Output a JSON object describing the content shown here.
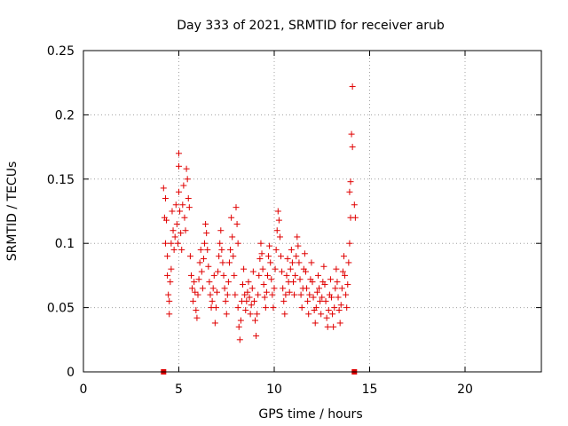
{
  "chart_data": {
    "type": "scatter",
    "title": "Day 333 of 2021, SRMTID for receiver arub",
    "xlabel": "GPS time / hours",
    "ylabel": "SRMTID / TECUs",
    "xlim": [
      0,
      24
    ],
    "ylim": [
      0,
      0.25
    ],
    "xticks": [
      0,
      5,
      10,
      15,
      20
    ],
    "yticks": [
      0,
      0.05,
      0.1,
      0.15,
      0.2,
      0.25
    ],
    "ytick_labels": [
      "0",
      "0.05",
      "0.1",
      "0.15",
      "0.2",
      "0.25"
    ],
    "xtick_labels": [
      "0",
      "5",
      "10",
      "15",
      "20"
    ],
    "grid": true,
    "marker": "+",
    "color": "#e00000",
    "zero_markers_x": [
      4.2,
      14.2
    ],
    "points": [
      [
        4.2,
        0.143
      ],
      [
        4.25,
        0.12
      ],
      [
        4.3,
        0.1
      ],
      [
        4.3,
        0.135
      ],
      [
        4.35,
        0.118
      ],
      [
        4.4,
        0.09
      ],
      [
        4.4,
        0.075
      ],
      [
        4.45,
        0.06
      ],
      [
        4.5,
        0.045
      ],
      [
        4.5,
        0.055
      ],
      [
        4.55,
        0.07
      ],
      [
        4.6,
        0.08
      ],
      [
        4.6,
        0.1
      ],
      [
        4.65,
        0.125
      ],
      [
        4.7,
        0.11
      ],
      [
        4.75,
        0.095
      ],
      [
        4.8,
        0.105
      ],
      [
        4.85,
        0.13
      ],
      [
        4.9,
        0.115
      ],
      [
        4.95,
        0.1
      ],
      [
        5.0,
        0.14
      ],
      [
        5.0,
        0.16
      ],
      [
        5.0,
        0.17
      ],
      [
        5.05,
        0.125
      ],
      [
        5.1,
        0.108
      ],
      [
        5.15,
        0.095
      ],
      [
        5.2,
        0.13
      ],
      [
        5.25,
        0.145
      ],
      [
        5.3,
        0.12
      ],
      [
        5.35,
        0.11
      ],
      [
        5.4,
        0.158
      ],
      [
        5.45,
        0.15
      ],
      [
        5.5,
        0.135
      ],
      [
        5.55,
        0.128
      ],
      [
        5.6,
        0.09
      ],
      [
        5.65,
        0.075
      ],
      [
        5.7,
        0.065
      ],
      [
        5.75,
        0.055
      ],
      [
        5.8,
        0.07
      ],
      [
        5.85,
        0.062
      ],
      [
        5.9,
        0.048
      ],
      [
        5.95,
        0.042
      ],
      [
        6.0,
        0.06
      ],
      [
        6.05,
        0.072
      ],
      [
        6.1,
        0.085
      ],
      [
        6.15,
        0.095
      ],
      [
        6.2,
        0.078
      ],
      [
        6.25,
        0.065
      ],
      [
        6.3,
        0.088
      ],
      [
        6.35,
        0.1
      ],
      [
        6.4,
        0.115
      ],
      [
        6.45,
        0.108
      ],
      [
        6.5,
        0.095
      ],
      [
        6.55,
        0.082
      ],
      [
        6.6,
        0.07
      ],
      [
        6.65,
        0.06
      ],
      [
        6.7,
        0.05
      ],
      [
        6.75,
        0.055
      ],
      [
        6.8,
        0.065
      ],
      [
        6.85,
        0.075
      ],
      [
        6.9,
        0.038
      ],
      [
        6.95,
        0.05
      ],
      [
        7.0,
        0.062
      ],
      [
        7.05,
        0.078
      ],
      [
        7.1,
        0.09
      ],
      [
        7.15,
        0.1
      ],
      [
        7.2,
        0.11
      ],
      [
        7.25,
        0.095
      ],
      [
        7.3,
        0.085
      ],
      [
        7.35,
        0.075
      ],
      [
        7.4,
        0.065
      ],
      [
        7.45,
        0.055
      ],
      [
        7.5,
        0.045
      ],
      [
        7.55,
        0.06
      ],
      [
        7.6,
        0.07
      ],
      [
        7.65,
        0.085
      ],
      [
        7.7,
        0.095
      ],
      [
        7.75,
        0.12
      ],
      [
        7.8,
        0.105
      ],
      [
        7.85,
        0.09
      ],
      [
        7.9,
        0.075
      ],
      [
        7.95,
        0.06
      ],
      [
        8.0,
        0.128
      ],
      [
        8.05,
        0.115
      ],
      [
        8.1,
        0.1
      ],
      [
        8.1,
        0.05
      ],
      [
        8.15,
        0.035
      ],
      [
        8.2,
        0.025
      ],
      [
        8.25,
        0.04
      ],
      [
        8.3,
        0.055
      ],
      [
        8.35,
        0.068
      ],
      [
        8.4,
        0.08
      ],
      [
        8.45,
        0.06
      ],
      [
        8.5,
        0.048
      ],
      [
        8.55,
        0.055
      ],
      [
        8.6,
        0.062
      ],
      [
        8.65,
        0.07
      ],
      [
        8.7,
        0.058
      ],
      [
        8.75,
        0.045
      ],
      [
        8.8,
        0.052
      ],
      [
        8.85,
        0.065
      ],
      [
        8.9,
        0.078
      ],
      [
        8.95,
        0.055
      ],
      [
        9.0,
        0.04
      ],
      [
        9.05,
        0.028
      ],
      [
        9.1,
        0.045
      ],
      [
        9.15,
        0.06
      ],
      [
        9.2,
        0.075
      ],
      [
        9.25,
        0.088
      ],
      [
        9.3,
        0.1
      ],
      [
        9.35,
        0.092
      ],
      [
        9.4,
        0.08
      ],
      [
        9.45,
        0.068
      ],
      [
        9.5,
        0.058
      ],
      [
        9.55,
        0.05
      ],
      [
        9.6,
        0.062
      ],
      [
        9.65,
        0.075
      ],
      [
        9.7,
        0.09
      ],
      [
        9.75,
        0.098
      ],
      [
        9.8,
        0.085
      ],
      [
        9.85,
        0.072
      ],
      [
        9.9,
        0.06
      ],
      [
        9.95,
        0.05
      ],
      [
        10.0,
        0.065
      ],
      [
        10.05,
        0.08
      ],
      [
        10.1,
        0.095
      ],
      [
        10.15,
        0.11
      ],
      [
        10.2,
        0.125
      ],
      [
        10.25,
        0.118
      ],
      [
        10.3,
        0.105
      ],
      [
        10.35,
        0.09
      ],
      [
        10.4,
        0.078
      ],
      [
        10.45,
        0.065
      ],
      [
        10.5,
        0.055
      ],
      [
        10.55,
        0.045
      ],
      [
        10.6,
        0.06
      ],
      [
        10.65,
        0.075
      ],
      [
        10.7,
        0.088
      ],
      [
        10.75,
        0.07
      ],
      [
        10.8,
        0.062
      ],
      [
        10.85,
        0.08
      ],
      [
        10.9,
        0.095
      ],
      [
        10.95,
        0.085
      ],
      [
        11.0,
        0.07
      ],
      [
        11.05,
        0.06
      ],
      [
        11.1,
        0.075
      ],
      [
        11.15,
        0.09
      ],
      [
        11.2,
        0.105
      ],
      [
        11.25,
        0.098
      ],
      [
        11.3,
        0.085
      ],
      [
        11.35,
        0.072
      ],
      [
        11.4,
        0.06
      ],
      [
        11.45,
        0.05
      ],
      [
        11.5,
        0.065
      ],
      [
        11.55,
        0.08
      ],
      [
        11.6,
        0.092
      ],
      [
        11.65,
        0.078
      ],
      [
        11.7,
        0.065
      ],
      [
        11.75,
        0.055
      ],
      [
        11.8,
        0.045
      ],
      [
        11.85,
        0.06
      ],
      [
        11.9,
        0.072
      ],
      [
        11.95,
        0.085
      ],
      [
        12.0,
        0.07
      ],
      [
        12.05,
        0.058
      ],
      [
        12.1,
        0.048
      ],
      [
        12.15,
        0.038
      ],
      [
        12.2,
        0.05
      ],
      [
        12.25,
        0.062
      ],
      [
        12.3,
        0.075
      ],
      [
        12.35,
        0.065
      ],
      [
        12.4,
        0.055
      ],
      [
        12.45,
        0.045
      ],
      [
        12.5,
        0.058
      ],
      [
        12.55,
        0.07
      ],
      [
        12.6,
        0.082
      ],
      [
        12.65,
        0.068
      ],
      [
        12.7,
        0.055
      ],
      [
        12.75,
        0.042
      ],
      [
        12.8,
        0.035
      ],
      [
        12.85,
        0.048
      ],
      [
        12.9,
        0.06
      ],
      [
        12.95,
        0.072
      ],
      [
        13.0,
        0.058
      ],
      [
        13.05,
        0.045
      ],
      [
        13.1,
        0.035
      ],
      [
        13.15,
        0.05
      ],
      [
        13.2,
        0.065
      ],
      [
        13.25,
        0.08
      ],
      [
        13.3,
        0.07
      ],
      [
        13.35,
        0.058
      ],
      [
        13.4,
        0.048
      ],
      [
        13.45,
        0.038
      ],
      [
        13.5,
        0.052
      ],
      [
        13.55,
        0.065
      ],
      [
        13.6,
        0.078
      ],
      [
        13.65,
        0.09
      ],
      [
        13.7,
        0.075
      ],
      [
        13.75,
        0.06
      ],
      [
        13.8,
        0.05
      ],
      [
        13.85,
        0.068
      ],
      [
        13.9,
        0.085
      ],
      [
        13.95,
        0.1
      ],
      [
        13.95,
        0.14
      ],
      [
        14.0,
        0.12
      ],
      [
        14.0,
        0.148
      ],
      [
        14.05,
        0.185
      ],
      [
        14.1,
        0.175
      ],
      [
        14.1,
        0.222
      ],
      [
        14.2,
        0.13
      ],
      [
        14.25,
        0.12
      ]
    ]
  }
}
